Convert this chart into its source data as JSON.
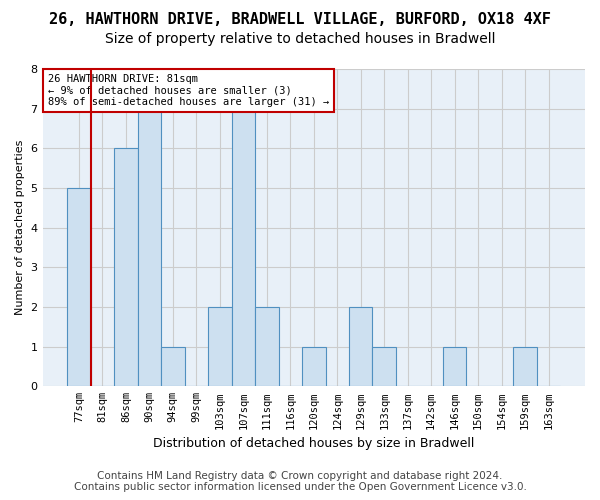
{
  "title_line1": "26, HAWTHORN DRIVE, BRADWELL VILLAGE, BURFORD, OX18 4XF",
  "title_line2": "Size of property relative to detached houses in Bradwell",
  "xlabel": "Distribution of detached houses by size in Bradwell",
  "ylabel": "Number of detached properties",
  "footnote1": "Contains HM Land Registry data © Crown copyright and database right 2024.",
  "footnote2": "Contains public sector information licensed under the Open Government Licence v3.0.",
  "annotation_line1": "26 HAWTHORN DRIVE: 81sqm",
  "annotation_line2": "← 9% of detached houses are smaller (3)",
  "annotation_line3": "89% of semi-detached houses are larger (31) →",
  "bins": [
    "77sqm",
    "81sqm",
    "86sqm",
    "90sqm",
    "94sqm",
    "99sqm",
    "103sqm",
    "107sqm",
    "111sqm",
    "116sqm",
    "120sqm",
    "124sqm",
    "129sqm",
    "133sqm",
    "137sqm",
    "142sqm",
    "146sqm",
    "150sqm",
    "154sqm",
    "159sqm",
    "163sqm"
  ],
  "values": [
    5,
    0,
    6,
    7,
    1,
    0,
    2,
    7,
    2,
    0,
    1,
    0,
    2,
    1,
    0,
    0,
    1,
    0,
    0,
    1,
    0
  ],
  "bar_color": "#cde0f0",
  "bar_edge_color": "#5090c0",
  "highlight_color": "#c00000",
  "ylim": [
    0,
    8
  ],
  "yticks": [
    0,
    1,
    2,
    3,
    4,
    5,
    6,
    7,
    8
  ],
  "grid_color": "#cccccc",
  "bg_color": "#e8f0f8",
  "annotation_box_color": "#c00000",
  "title1_fontsize": 11,
  "title2_fontsize": 10,
  "footnote_fontsize": 7.5,
  "tick_fontsize": 7.5,
  "ylabel_fontsize": 8,
  "xlabel_fontsize": 9
}
